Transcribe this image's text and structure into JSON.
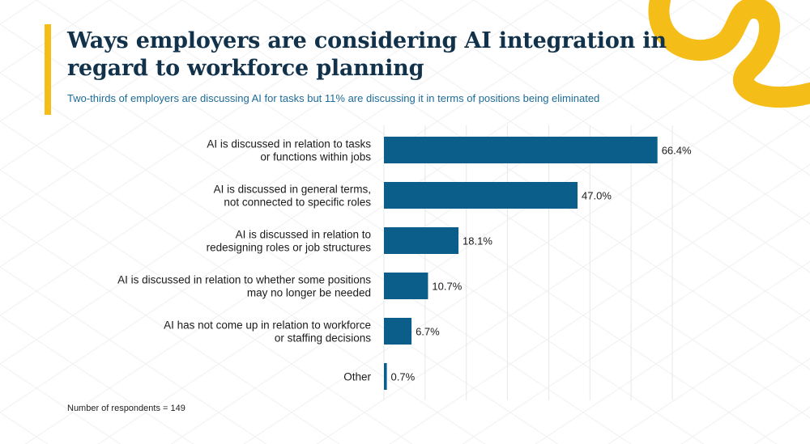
{
  "header": {
    "title": "Ways employers are considering AI integration in regard to workforce planning",
    "subtitle": "Two-thirds of employers are discussing AI for tasks but 11% are discussing it in terms of positions being eliminated"
  },
  "footnote": "Number of respondents = 149",
  "colors": {
    "bar": "#0b5d8a",
    "title": "#11324a",
    "subtitle": "#1d6b97",
    "accent": "#f5bd18"
  },
  "chart_data": {
    "type": "bar",
    "orientation": "horizontal",
    "categories": [
      [
        "AI is discussed in relation to tasks",
        "or functions within jobs"
      ],
      [
        "AI is discussed in general terms,",
        "not connected to specific roles"
      ],
      [
        "AI is discussed in relation to",
        "redesigning roles or job structures"
      ],
      [
        "AI is discussed in relation to whether some positions",
        "may no longer be needed"
      ],
      [
        "AI has not come up in relation to workforce",
        "or staffing decisions"
      ],
      [
        "Other"
      ]
    ],
    "values": [
      66.4,
      47.0,
      18.1,
      10.7,
      6.7,
      0.7
    ],
    "value_labels": [
      "66.4%",
      "47.0%",
      "18.1%",
      "10.7%",
      "6.7%",
      "0.7%"
    ],
    "xlim": [
      0,
      70
    ],
    "grid": true
  }
}
